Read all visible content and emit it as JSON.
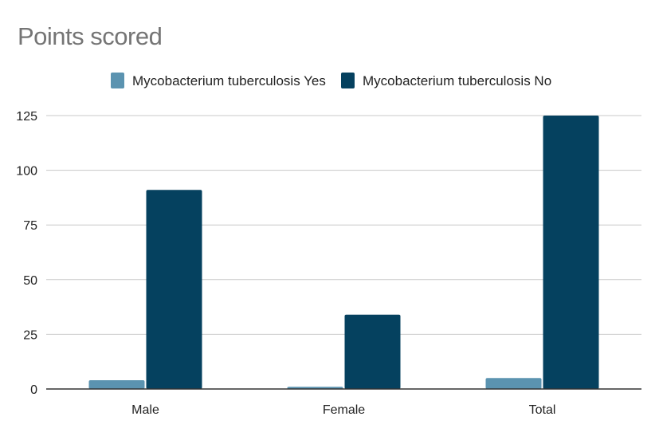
{
  "chart_data": {
    "type": "bar",
    "title": "Points scored",
    "categories": [
      "Male",
      "Female",
      "Total"
    ],
    "series": [
      {
        "name": "Mycobacterium tuberculosis Yes",
        "values": [
          4,
          1,
          5
        ],
        "color": "#5b93b0"
      },
      {
        "name": "Mycobacterium tuberculosis No",
        "values": [
          91,
          34,
          125
        ],
        "color": "#05415f"
      }
    ],
    "ylim": [
      0,
      125
    ],
    "yticks": [
      0,
      25,
      50,
      75,
      100,
      125
    ],
    "xlabel": "",
    "ylabel": "",
    "grid": true,
    "legend": "top"
  }
}
